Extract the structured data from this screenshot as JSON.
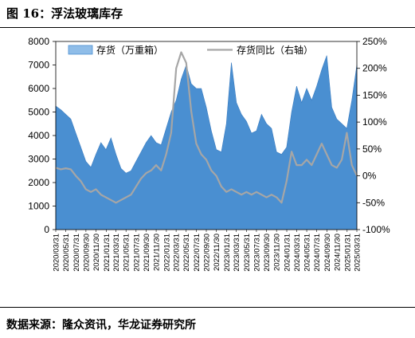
{
  "figure": {
    "title": "图 16：浮法玻璃库存",
    "source": "数据来源：隆众资讯，华龙证券研究所"
  },
  "chart_data": {
    "type": "area",
    "x": [
      "2020/03/31",
      "2020/04/30",
      "2020/05/31",
      "2020/06/30",
      "2020/07/31",
      "2020/08/31",
      "2020/09/30",
      "2020/10/31",
      "2020/11/30",
      "2020/12/31",
      "2021/01/31",
      "2021/02/28",
      "2021/03/31",
      "2021/04/30",
      "2021/05/31",
      "2021/06/30",
      "2021/07/31",
      "2021/08/31",
      "2021/09/30",
      "2021/10/31",
      "2021/11/30",
      "2021/12/31",
      "2022/01/31",
      "2022/02/28",
      "2022/03/31",
      "2022/04/30",
      "2022/05/31",
      "2022/06/30",
      "2022/07/31",
      "2022/08/31",
      "2022/09/30",
      "2022/10/31",
      "2022/11/30",
      "2022/12/31",
      "2023/01/31",
      "2023/02/28",
      "2023/03/31",
      "2023/04/30",
      "2023/05/31",
      "2023/06/30",
      "2023/07/31",
      "2023/08/31",
      "2023/09/30",
      "2023/10/31",
      "2023/11/30",
      "2023/12/31",
      "2024/01/31",
      "2024/02/29",
      "2024/03/31",
      "2024/04/30",
      "2024/05/31",
      "2024/06/30",
      "2024/07/31",
      "2024/08/31",
      "2024/09/30",
      "2024/10/31",
      "2024/11/30",
      "2024/12/31",
      "2025/01/31",
      "2025/02/28",
      "2025/03/31"
    ],
    "x_tick_labels": [
      "2020/03/31",
      "2020/05/31",
      "2020/07/31",
      "2020/09/30",
      "2020/11/30",
      "2021/01/31",
      "2021/03/31",
      "2021/05/31",
      "2021/07/31",
      "2021/09/30",
      "2021/11/30",
      "2022/01/31",
      "2022/03/31",
      "2022/05/31",
      "2022/07/31",
      "2022/09/30",
      "2022/11/30",
      "2023/01/31",
      "2023/03/31",
      "2023/05/31",
      "2023/07/31",
      "2023/09/30",
      "2023/11/30",
      "2024/01/31",
      "2024/03/31",
      "2024/05/31",
      "2024/07/31",
      "2024/09/30",
      "2024/11/30",
      "2025/01/31",
      "2025/03/31"
    ],
    "series": [
      {
        "name": "存货（万重箱）",
        "kind": "area",
        "axis": "left",
        "color": "#4a8fd1",
        "values": [
          5250,
          5100,
          4900,
          4700,
          4100,
          3500,
          2900,
          2650,
          3200,
          3700,
          3400,
          3900,
          3200,
          2600,
          2400,
          2500,
          2900,
          3300,
          3700,
          4000,
          3700,
          3600,
          4300,
          5000,
          5500,
          6400,
          7000,
          6200,
          6000,
          6000,
          5200,
          4200,
          3400,
          3300,
          4500,
          7100,
          5400,
          4900,
          4600,
          4100,
          4200,
          4900,
          4500,
          4300,
          3300,
          3200,
          3500,
          5000,
          6100,
          5400,
          6000,
          5500,
          6100,
          6800,
          7400,
          5200,
          4700,
          4500,
          4300,
          5500,
          7000
        ]
      },
      {
        "name": "存货同比（右轴）",
        "kind": "line",
        "axis": "right",
        "color": "#a6a6a6",
        "values": [
          15,
          12,
          14,
          12,
          0,
          -10,
          -25,
          -30,
          -25,
          -35,
          -40,
          -45,
          -50,
          -45,
          -40,
          -35,
          -20,
          -5,
          5,
          10,
          20,
          10,
          40,
          80,
          200,
          230,
          210,
          120,
          60,
          40,
          30,
          10,
          0,
          -20,
          -30,
          -25,
          -30,
          -35,
          -30,
          -35,
          -30,
          -35,
          -40,
          -35,
          -40,
          -50,
          -10,
          45,
          20,
          20,
          30,
          20,
          40,
          60,
          40,
          20,
          15,
          30,
          80,
          20,
          0
        ]
      }
    ],
    "y_left": {
      "ticks": [
        0,
        1000,
        2000,
        3000,
        4000,
        5000,
        6000,
        7000,
        8000
      ],
      "ylim": [
        0,
        8000
      ]
    },
    "y_right": {
      "ticks": [
        "-100%",
        "-50%",
        "0%",
        "50%",
        "100%",
        "150%",
        "200%",
        "250%"
      ],
      "ylim": [
        -100,
        250
      ]
    },
    "xlabel": "",
    "ylabel": "",
    "grid": false,
    "legend": "top"
  }
}
